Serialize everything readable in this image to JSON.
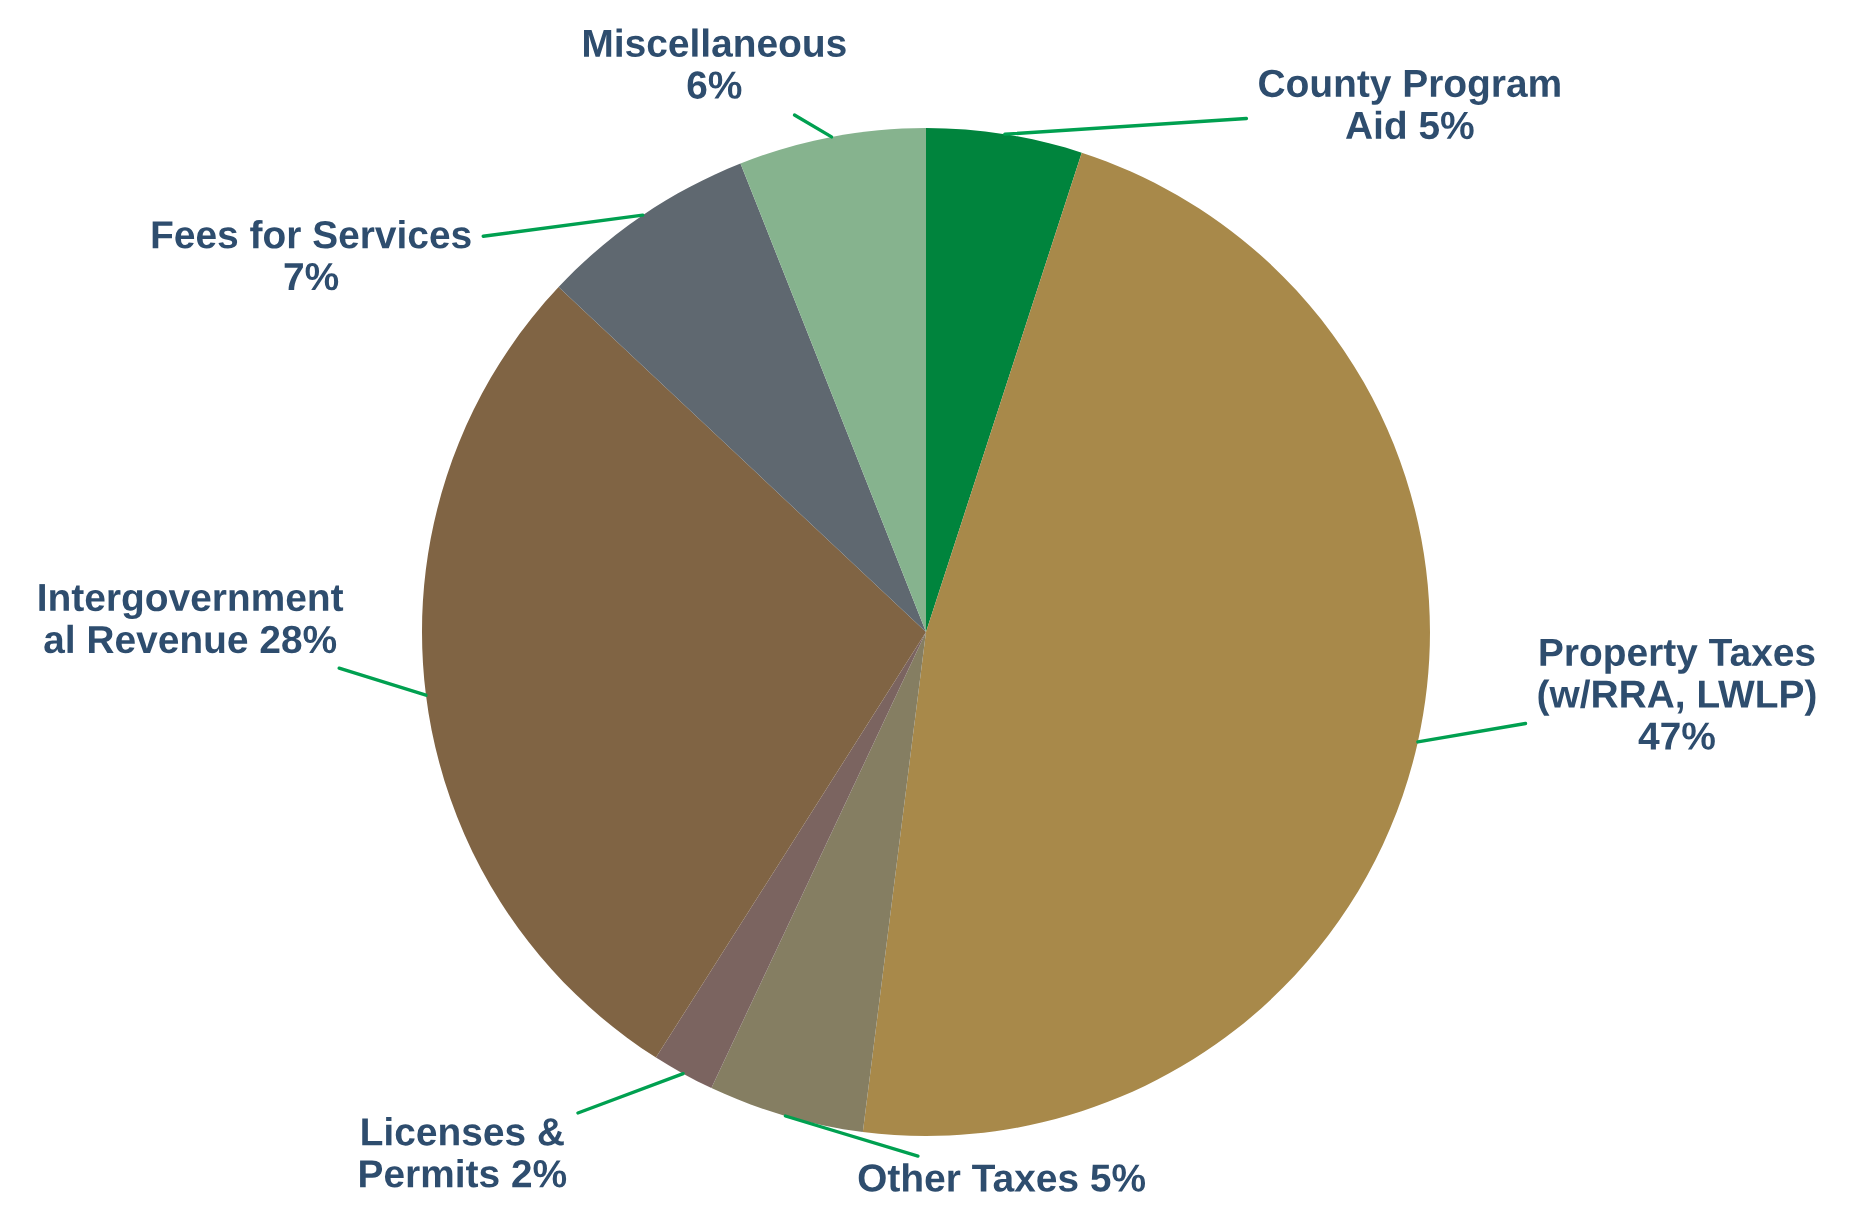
{
  "chart_data": {
    "type": "pie",
    "categories": [
      "County Program\nAid",
      "Property Taxes\n(w/RRA, LWLP)\n",
      "Other Taxes",
      "Licenses &\nPermits",
      "Intergovernment\nal Revenue",
      "Fees for Services\n",
      "Miscellaneous\n"
    ],
    "values": [
      5,
      47,
      5,
      2,
      28,
      7,
      6
    ],
    "value_labels": [
      "5%",
      "47%",
      "5%",
      "2%",
      "28%",
      "7%",
      "6%"
    ],
    "colors": [
      "#00843d",
      "#a8894a",
      "#857e62",
      "#7b6460",
      "#806444",
      "#5f6870",
      "#86b38e"
    ],
    "legend": false
  }
}
